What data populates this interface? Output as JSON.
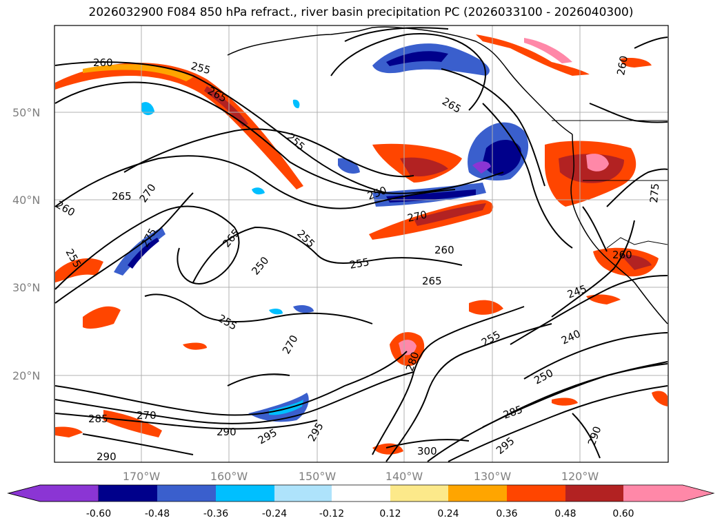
{
  "title": "2026032900 F084 850 hPa refract., river basin precipitation PC (2026033100 - 2026040300)",
  "map": {
    "lat_labels": [
      "50°N",
      "40°N",
      "30°N",
      "20°N"
    ],
    "lon_labels": [
      "170°W",
      "160°W",
      "150°W",
      "140°W",
      "130°W",
      "120°W"
    ],
    "contour_labels": [
      "260",
      "255",
      "265",
      "255",
      "250",
      "270",
      "265",
      "260",
      "275",
      "255",
      "255",
      "265",
      "250",
      "255",
      "255",
      "270",
      "260",
      "265",
      "245",
      "240",
      "255",
      "250",
      "270",
      "280",
      "285",
      "270",
      "290",
      "295",
      "295",
      "285",
      "290",
      "295",
      "300",
      "290",
      "265",
      "260",
      "275",
      "260"
    ]
  },
  "colorbar": {
    "ticks": [
      "-0.60",
      "-0.48",
      "-0.36",
      "-0.24",
      "-0.12",
      "0.12",
      "0.24",
      "0.36",
      "0.48",
      "0.60"
    ],
    "colors": [
      "#8b35d4",
      "#00008b",
      "#3a5fcd",
      "#00bfff",
      "#aee3fb",
      "#ffffff",
      "#fce98a",
      "#ffa500",
      "#ff4500",
      "#b22222",
      "#ff88a8",
      "#ff88a8"
    ]
  }
}
